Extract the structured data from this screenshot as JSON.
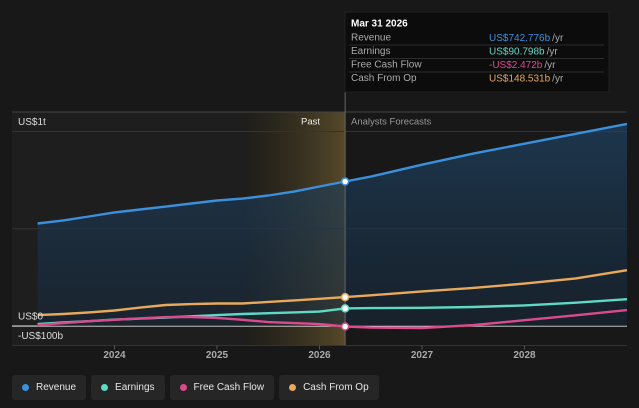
{
  "chart_data": {
    "type": "line",
    "x": [
      2023.25,
      2023.5,
      2023.75,
      2024,
      2024.25,
      2024.5,
      2024.75,
      2025,
      2025.25,
      2025.5,
      2025.75,
      2026,
      2026.25,
      2026.5,
      2027,
      2027.5,
      2028,
      2028.5,
      2029
    ],
    "xlim": [
      2023,
      2029
    ],
    "xticks": [
      2024,
      2025,
      2026,
      2027,
      2028
    ],
    "ylim": [
      -100,
      1100
    ],
    "yticks": [
      {
        "value": -100,
        "label": "-US$100b"
      },
      {
        "value": 0,
        "label": "US$0"
      },
      {
        "value": 500,
        "label": null
      },
      {
        "value": 1000,
        "label": "US$1t"
      }
    ],
    "grid": true,
    "past_label": "Past",
    "forecast_label": "Analysts Forecasts",
    "forecast_start": 2026.25,
    "highlight": [
      2025.25,
      2026.25
    ],
    "series": [
      {
        "name": "Revenue",
        "color": "#3b8fdb",
        "area": true,
        "values": [
          527,
          543,
          563,
          584,
          599,
          614,
          630,
          645,
          655,
          671,
          691,
          717,
          742.776,
          768,
          829,
          886,
          937,
          988,
          1039
        ]
      },
      {
        "name": "Earnings",
        "color": "#5fd9c6",
        "values": [
          10,
          18,
          25,
          33,
          38,
          44,
          50,
          56,
          62,
          66,
          70,
          74,
          90.798,
          92,
          94,
          98,
          106,
          120,
          138
        ]
      },
      {
        "name": "Free Cash Flow",
        "color": "#d94b8c",
        "values": [
          5,
          15,
          25,
          32,
          40,
          46,
          46,
          42,
          32,
          20,
          15,
          10,
          -2.472,
          -8,
          -10,
          5,
          30,
          55,
          82
        ]
      },
      {
        "name": "Cash From Op",
        "color": "#e8a95c",
        "values": [
          56,
          62,
          70,
          80,
          95,
          108,
          113,
          116,
          116,
          124,
          132,
          140,
          148.531,
          158,
          178,
          196,
          218,
          245,
          287
        ]
      }
    ],
    "tooltip": {
      "date": "Mar 31 2026",
      "index": 12,
      "unit": "/yr",
      "value_labels": [
        "US$742.776b",
        "US$90.798b",
        "-US$2.472b",
        "US$148.531b"
      ]
    }
  }
}
